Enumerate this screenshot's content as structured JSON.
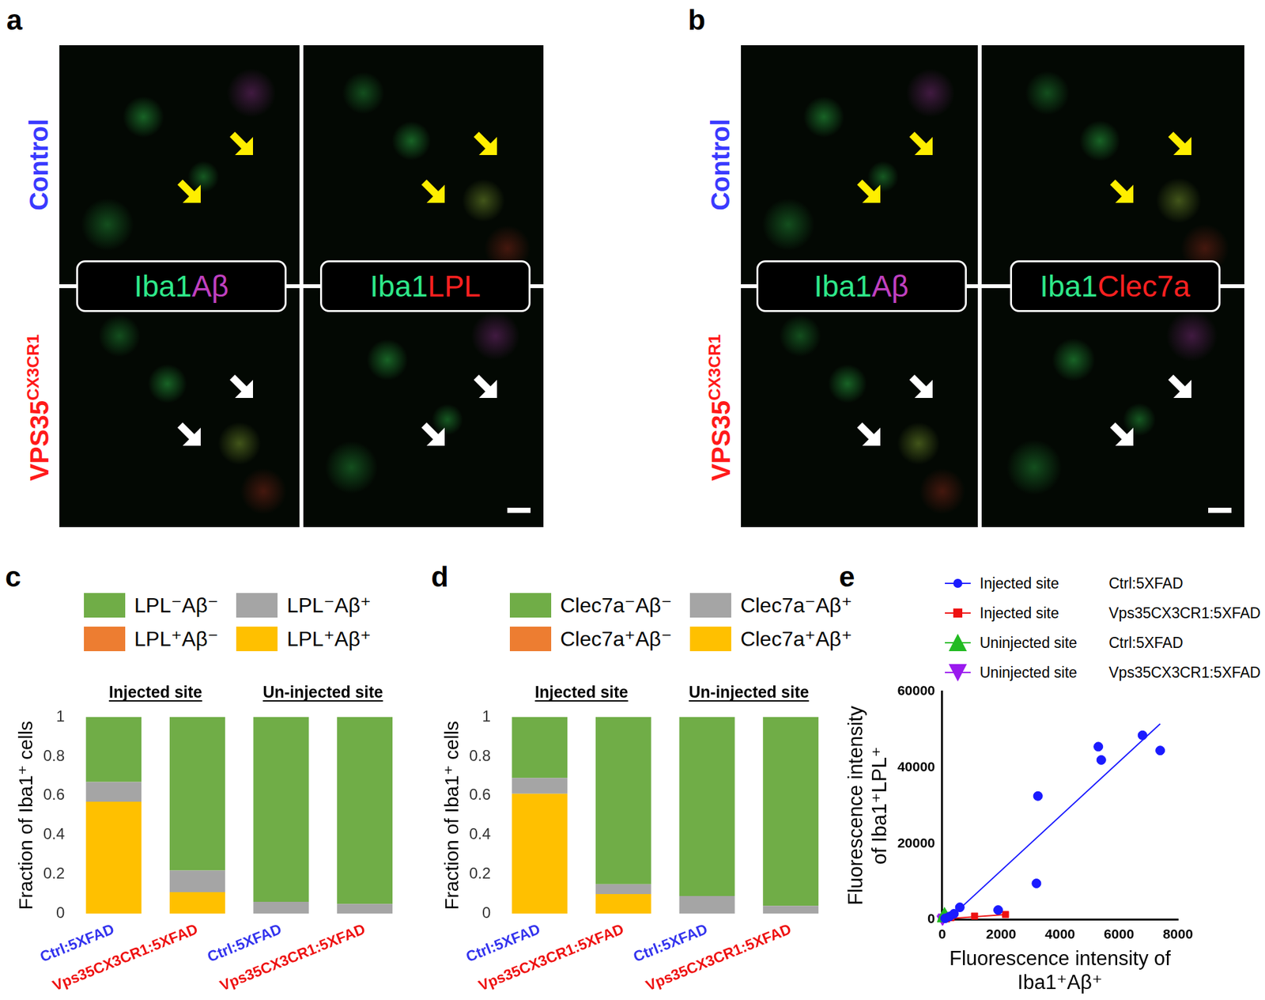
{
  "image_panels": [
    {
      "panel": "a",
      "rows": [
        {
          "text": "Control",
          "sup": "",
          "color": "#3a3aff"
        },
        {
          "text": "VPS35",
          "sup": "CX3CR1",
          "color": "#ff1a1a"
        }
      ],
      "columns": [
        {
          "parts": [
            {
              "text": "Iba1",
              "color": "#2ee88a"
            },
            {
              "text": "Aβ",
              "color": "#c040c0"
            }
          ]
        },
        {
          "parts": [
            {
              "text": "Iba1",
              "color": "#2ee88a"
            },
            {
              "text": "LPL",
              "color": "#ff2020"
            }
          ]
        }
      ]
    },
    {
      "panel": "b",
      "rows": [
        {
          "text": "Control",
          "sup": "",
          "color": "#3a3aff"
        },
        {
          "text": "VPS35",
          "sup": "CX3CR1",
          "color": "#ff1a1a"
        }
      ],
      "columns": [
        {
          "parts": [
            {
              "text": "Iba1",
              "color": "#2ee88a"
            },
            {
              "text": "Aβ",
              "color": "#c040c0"
            }
          ]
        },
        {
          "parts": [
            {
              "text": "Iba1",
              "color": "#2ee88a"
            },
            {
              "text": "Clec7a",
              "color": "#ff2020"
            }
          ]
        }
      ]
    }
  ],
  "chart_data": [
    {
      "panel": "c",
      "type": "bar",
      "stacked": true,
      "grid": false,
      "legend": "top",
      "ylabel": "Fraction of Iba1⁺ cells",
      "categories": [
        "Ctrl:5XFAD",
        "Vps35CX3CR1:5XFAD",
        "Ctrl:5XFAD",
        "Vps35CX3CR1:5XFAD"
      ],
      "category_groups": [
        "Injected site",
        "Un-injected site"
      ],
      "series": [
        {
          "name": "LPL⁺Aβ⁺",
          "color": "#ffc000",
          "values": [
            0.57,
            0.11,
            0,
            0
          ]
        },
        {
          "name": "LPL⁺Aβ⁻",
          "color": "#ed7d31",
          "values": [
            0,
            0,
            0,
            0
          ]
        },
        {
          "name": "LPL⁻Aβ⁺",
          "color": "#a5a5a5",
          "values": [
            0.1,
            0.11,
            0.06,
            0.05
          ]
        },
        {
          "name": "LPL⁻Aβ⁻",
          "color": "#70ad47",
          "values": [
            0.33,
            0.78,
            0.94,
            0.95
          ]
        }
      ],
      "ylim": [
        0,
        1
      ],
      "yticks": [
        0,
        0.2,
        0.4,
        0.6,
        0.8,
        1
      ]
    },
    {
      "panel": "d",
      "type": "bar",
      "stacked": true,
      "grid": false,
      "legend": "top",
      "ylabel": "Fraction of Iba1⁺ cells",
      "categories": [
        "Ctrl:5XFAD",
        "Vps35CX3CR1:5XFAD",
        "Ctrl:5XFAD",
        "Vps35CX3CR1:5XFAD"
      ],
      "category_groups": [
        "Injected site",
        "Un-injected site"
      ],
      "series": [
        {
          "name": "Clec7a⁺Aβ⁺",
          "color": "#ffc000",
          "values": [
            0.61,
            0.1,
            0,
            0
          ]
        },
        {
          "name": "Clec7a⁺Aβ⁻",
          "color": "#ed7d31",
          "values": [
            0,
            0,
            0,
            0
          ]
        },
        {
          "name": "Clec7a⁻Aβ⁺",
          "color": "#a5a5a5",
          "values": [
            0.08,
            0.05,
            0.09,
            0.04
          ]
        },
        {
          "name": "Clec7a⁻Aβ⁻",
          "color": "#70ad47",
          "values": [
            0.31,
            0.85,
            0.91,
            0.96
          ]
        }
      ],
      "ylim": [
        0,
        1
      ],
      "yticks": [
        0,
        0.2,
        0.4,
        0.6,
        0.8,
        1
      ]
    },
    {
      "panel": "e",
      "type": "scatter",
      "grid": false,
      "legend": "top",
      "xlabel": [
        "Fluorescence intensity of",
        "Iba1⁺Aβ⁺"
      ],
      "ylabel": [
        "Fluorescence intensity",
        "of Iba1⁺LPL⁺"
      ],
      "xlim": [
        0,
        8000
      ],
      "xticks": [
        0,
        2000,
        4000,
        6000,
        8000
      ],
      "ylim": [
        0,
        60000
      ],
      "yticks": [
        0,
        20000,
        40000,
        60000
      ],
      "series": [
        {
          "name": "Injected site",
          "genotype": "Ctrl:5XFAD",
          "color": "#1a1aff",
          "marker": "circle",
          "x": [
            100,
            250,
            400,
            600,
            1900,
            3200,
            3250,
            5300,
            5400,
            6800,
            7400
          ],
          "y": [
            300,
            800,
            1500,
            3200,
            2500,
            9500,
            32500,
            45500,
            42000,
            48500,
            44500
          ],
          "fit": {
            "x": [
              200,
              7400
            ],
            "y": [
              0,
              51500
            ]
          }
        },
        {
          "name": "Injected site",
          "genotype": "Vps35CX3CR1:5XFAD",
          "color": "#ee1111",
          "marker": "rect",
          "x": [
            150,
            300,
            1100,
            2150
          ],
          "y": [
            200,
            500,
            900,
            1300
          ],
          "fit": {
            "x": [
              0,
              2150
            ],
            "y": [
              100,
              1300
            ]
          }
        },
        {
          "name": "Uninjected site",
          "genotype": "Ctrl:5XFAD",
          "color": "#22bb22",
          "marker": "triangle",
          "x": [
            20,
            40,
            60,
            80
          ],
          "y": [
            200,
            600,
            1000,
            1500
          ]
        },
        {
          "name": "Uninjected site",
          "genotype": "Vps35CX3CR1:5XFAD",
          "color": "#9a1aee",
          "marker": "triangle_down",
          "x": [
            10,
            30,
            50
          ],
          "y": [
            100,
            300,
            600
          ]
        }
      ]
    }
  ]
}
